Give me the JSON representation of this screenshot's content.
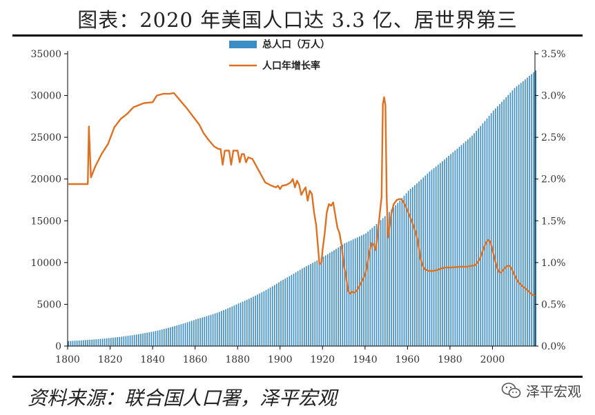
{
  "chart_data": {
    "type": "bar+line",
    "title": "图表：2020 年美国人口达 3.3 亿、居世界第三",
    "source": "资料来源：联合国人口署，泽平宏观",
    "watermark": "泽平宏观",
    "colors": {
      "bars": "#3c8dc6",
      "line": "#e07020",
      "axis": "#000000",
      "text": "#333333"
    },
    "legend": [
      {
        "label": "总人口（万人）",
        "kind": "bar"
      },
      {
        "label": "人口年增长率",
        "kind": "line"
      }
    ],
    "x_ticks": [
      1800,
      1820,
      1840,
      1860,
      1880,
      1900,
      1920,
      1940,
      1960,
      1980,
      2000
    ],
    "xlim": [
      1800,
      2020
    ],
    "y_left": {
      "ticks": [
        0,
        5000,
        10000,
        15000,
        20000,
        25000,
        30000,
        35000
      ],
      "ylim": [
        0,
        35000
      ]
    },
    "y_right": {
      "ticks": [
        "0.0%",
        "0.5%",
        "1.0%",
        "1.5%",
        "2.0%",
        "2.5%",
        "3.0%",
        "3.5%"
      ],
      "ylim": [
        0,
        3.5
      ]
    },
    "population_anchors": [
      [
        1800,
        600
      ],
      [
        1810,
        750
      ],
      [
        1820,
        980
      ],
      [
        1830,
        1300
      ],
      [
        1840,
        1750
      ],
      [
        1850,
        2400
      ],
      [
        1860,
        3200
      ],
      [
        1870,
        4000
      ],
      [
        1880,
        5100
      ],
      [
        1890,
        6300
      ],
      [
        1900,
        7800
      ],
      [
        1910,
        9300
      ],
      [
        1920,
        10700
      ],
      [
        1930,
        12300
      ],
      [
        1940,
        13500
      ],
      [
        1950,
        15800
      ],
      [
        1960,
        18600
      ],
      [
        1970,
        20900
      ],
      [
        1980,
        23000
      ],
      [
        1990,
        25200
      ],
      [
        2000,
        28200
      ],
      [
        2010,
        30900
      ],
      [
        2020,
        33000
      ]
    ],
    "growth_rate": [
      [
        1800,
        1.94
      ],
      [
        1809.5,
        1.94
      ],
      [
        1810,
        2.63
      ],
      [
        1810.5,
        2.31
      ],
      [
        1811,
        2.02
      ],
      [
        1813,
        2.15
      ],
      [
        1816,
        2.3
      ],
      [
        1819,
        2.42
      ],
      [
        1822,
        2.62
      ],
      [
        1825,
        2.72
      ],
      [
        1828,
        2.78
      ],
      [
        1831,
        2.86
      ],
      [
        1836,
        2.91
      ],
      [
        1840,
        2.92
      ],
      [
        1842,
        3.0
      ],
      [
        1845,
        3.02
      ],
      [
        1848,
        3.02
      ],
      [
        1850,
        3.03
      ],
      [
        1853,
        2.94
      ],
      [
        1856,
        2.85
      ],
      [
        1859,
        2.75
      ],
      [
        1862,
        2.65
      ],
      [
        1864,
        2.55
      ],
      [
        1866,
        2.48
      ],
      [
        1869,
        2.39
      ],
      [
        1871,
        2.36
      ],
      [
        1872,
        2.36
      ],
      [
        1873,
        2.17
      ],
      [
        1874,
        2.34
      ],
      [
        1876,
        2.34
      ],
      [
        1877,
        2.17
      ],
      [
        1878,
        2.34
      ],
      [
        1880,
        2.34
      ],
      [
        1881,
        2.2
      ],
      [
        1882,
        2.3
      ],
      [
        1883,
        2.3
      ],
      [
        1884,
        2.2
      ],
      [
        1885,
        2.26
      ],
      [
        1887,
        2.24
      ],
      [
        1890,
        2.1
      ],
      [
        1893,
        1.96
      ],
      [
        1896,
        1.92
      ],
      [
        1898,
        1.9
      ],
      [
        1899,
        1.92
      ],
      [
        1900,
        1.88
      ],
      [
        1901,
        1.92
      ],
      [
        1903,
        1.93
      ],
      [
        1905,
        1.96
      ],
      [
        1906,
        2.0
      ],
      [
        1907,
        1.9
      ],
      [
        1908,
        1.98
      ],
      [
        1909,
        1.93
      ],
      [
        1910,
        1.81
      ],
      [
        1911,
        1.86
      ],
      [
        1912,
        1.9
      ],
      [
        1913,
        1.74
      ],
      [
        1914,
        1.86
      ],
      [
        1915,
        1.82
      ],
      [
        1916,
        1.6
      ],
      [
        1917,
        1.45
      ],
      [
        1918,
        1.15
      ],
      [
        1918.5,
        0.98
      ],
      [
        1919.5,
        1.0
      ],
      [
        1920,
        1.15
      ],
      [
        1921,
        1.35
      ],
      [
        1922,
        1.6
      ],
      [
        1923,
        1.7
      ],
      [
        1924,
        1.68
      ],
      [
        1925,
        1.72
      ],
      [
        1926,
        1.57
      ],
      [
        1927,
        1.42
      ],
      [
        1928,
        1.35
      ],
      [
        1929,
        1.2
      ],
      [
        1930,
        0.97
      ],
      [
        1931,
        0.85
      ],
      [
        1932,
        0.66
      ],
      [
        1933,
        0.63
      ],
      [
        1934,
        0.65
      ],
      [
        1935,
        0.64
      ],
      [
        1936,
        0.66
      ],
      [
        1937,
        0.7
      ],
      [
        1938,
        0.75
      ],
      [
        1939,
        0.8
      ],
      [
        1940,
        0.85
      ],
      [
        1941,
        0.96
      ],
      [
        1942,
        1.12
      ],
      [
        1943,
        1.23
      ],
      [
        1944,
        1.22
      ],
      [
        1945,
        1.15
      ],
      [
        1946,
        1.35
      ],
      [
        1947,
        1.6
      ],
      [
        1947.8,
        1.78
      ],
      [
        1948.4,
        2.9
      ],
      [
        1949,
        2.98
      ],
      [
        1949.6,
        2.88
      ],
      [
        1950.2,
        1.8
      ],
      [
        1950.8,
        1.3
      ],
      [
        1951.5,
        1.42
      ],
      [
        1952.5,
        1.6
      ],
      [
        1953.5,
        1.7
      ],
      [
        1955,
        1.75
      ],
      [
        1956,
        1.76
      ],
      [
        1957,
        1.76
      ],
      [
        1958,
        1.73
      ],
      [
        1959,
        1.68
      ],
      [
        1960,
        1.62
      ],
      [
        1962,
        1.5
      ],
      [
        1964,
        1.35
      ],
      [
        1965,
        1.24
      ],
      [
        1966,
        1.06
      ],
      [
        1967,
        0.97
      ],
      [
        1968,
        0.92
      ],
      [
        1970,
        0.9
      ],
      [
        1972,
        0.9
      ],
      [
        1974,
        0.91
      ],
      [
        1976,
        0.93
      ],
      [
        1978,
        0.94
      ],
      [
        1980,
        0.94
      ],
      [
        1985,
        0.95
      ],
      [
        1988,
        0.95
      ],
      [
        1990,
        0.96
      ],
      [
        1992,
        0.97
      ],
      [
        1994,
        1.04
      ],
      [
        1996,
        1.18
      ],
      [
        1997,
        1.24
      ],
      [
        1998,
        1.27
      ],
      [
        1999,
        1.25
      ],
      [
        2000,
        1.15
      ],
      [
        2002,
        0.95
      ],
      [
        2003,
        0.89
      ],
      [
        2004,
        0.88
      ],
      [
        2006,
        0.94
      ],
      [
        2007,
        0.96
      ],
      [
        2008,
        0.96
      ],
      [
        2009,
        0.93
      ],
      [
        2010,
        0.87
      ],
      [
        2012,
        0.77
      ],
      [
        2014,
        0.72
      ],
      [
        2016,
        0.68
      ],
      [
        2018,
        0.63
      ],
      [
        2019,
        0.61
      ],
      [
        2020,
        0.6
      ]
    ]
  }
}
